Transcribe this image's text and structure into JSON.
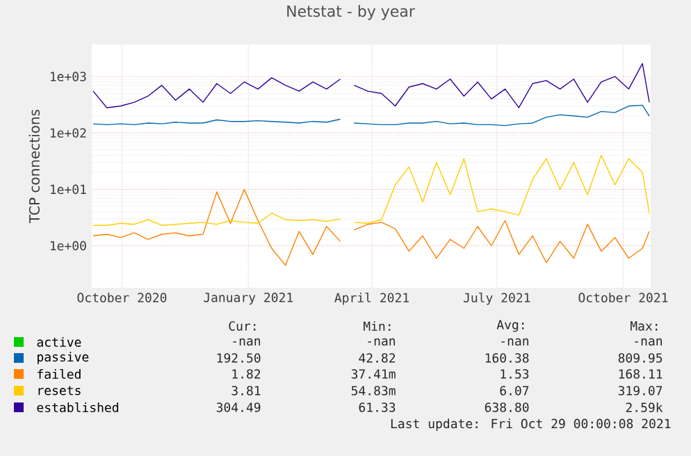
{
  "chart_data": {
    "type": "line",
    "title": "Netstat - by year",
    "ylabel": "TCP connections",
    "x": [
      "2020-09-10",
      "2020-09-20",
      "2020-09-30",
      "2020-10-10",
      "2020-10-20",
      "2020-10-30",
      "2020-11-09",
      "2020-11-19",
      "2020-11-29",
      "2020-12-09",
      "2020-12-19",
      "2020-12-29",
      "2021-01-08",
      "2021-01-18",
      "2021-01-28",
      "2021-02-07",
      "2021-02-17",
      "2021-02-27",
      "2021-03-09",
      "2021-03-14",
      "2021-03-19",
      "2021-03-29",
      "2021-04-08",
      "2021-04-18",
      "2021-04-28",
      "2021-05-08",
      "2021-05-18",
      "2021-05-28",
      "2021-06-07",
      "2021-06-17",
      "2021-06-27",
      "2021-07-07",
      "2021-07-17",
      "2021-07-27",
      "2021-08-06",
      "2021-08-16",
      "2021-08-26",
      "2021-09-05",
      "2021-09-15",
      "2021-09-25",
      "2021-10-05",
      "2021-10-15",
      "2021-10-20"
    ],
    "series": [
      {
        "name": "active",
        "color": "#00cc00",
        "values": [
          null,
          null,
          null,
          null,
          null,
          null,
          null,
          null,
          null,
          null,
          null,
          null,
          null,
          null,
          null,
          null,
          null,
          null,
          null,
          null,
          null,
          null,
          null,
          null,
          null,
          null,
          null,
          null,
          null,
          null,
          null,
          null,
          null,
          null,
          null,
          null,
          null,
          null,
          null,
          null,
          null,
          null,
          null
        ]
      },
      {
        "name": "passive",
        "color": "#0066b3",
        "values": [
          145,
          140,
          145,
          140,
          150,
          145,
          155,
          150,
          150,
          170,
          160,
          160,
          165,
          160,
          155,
          150,
          160,
          155,
          175,
          null,
          150,
          145,
          140,
          140,
          150,
          150,
          160,
          145,
          150,
          140,
          140,
          135,
          145,
          150,
          190,
          210,
          200,
          190,
          240,
          230,
          300,
          310,
          200
        ]
      },
      {
        "name": "failed",
        "color": "#ff8000",
        "values": [
          1.5,
          1.6,
          1.4,
          1.7,
          1.3,
          1.6,
          1.7,
          1.5,
          1.6,
          9,
          2.5,
          10,
          2.8,
          0.9,
          0.45,
          1.8,
          0.7,
          2.2,
          1.2,
          null,
          1.9,
          2.4,
          2.6,
          2.0,
          0.8,
          1.5,
          0.6,
          1.3,
          0.9,
          2.2,
          1.0,
          2.8,
          0.7,
          1.5,
          0.5,
          1.2,
          0.6,
          2.4,
          0.8,
          1.4,
          0.6,
          0.9,
          1.8
        ]
      },
      {
        "name": "resets",
        "color": "#ffcc00",
        "values": [
          2.3,
          2.3,
          2.5,
          2.4,
          2.9,
          2.3,
          2.4,
          2.5,
          2.6,
          2.4,
          2.8,
          2.6,
          2.5,
          3.8,
          2.9,
          2.8,
          2.9,
          2.7,
          3.0,
          null,
          2.6,
          2.5,
          2.9,
          12,
          25,
          6,
          30,
          8,
          35,
          4,
          4.5,
          4,
          3.5,
          15,
          35,
          10,
          30,
          8,
          40,
          12,
          35,
          20,
          3.8
        ]
      },
      {
        "name": "established",
        "color": "#330099",
        "values": [
          550,
          280,
          300,
          350,
          450,
          700,
          380,
          600,
          350,
          750,
          500,
          800,
          600,
          950,
          700,
          550,
          800,
          600,
          900,
          null,
          700,
          550,
          500,
          300,
          650,
          750,
          600,
          900,
          450,
          800,
          400,
          600,
          280,
          750,
          850,
          600,
          900,
          350,
          800,
          1000,
          600,
          1700,
          350
        ]
      }
    ],
    "xlim": [
      "2020-09-09",
      "2021-10-21"
    ],
    "xticks": [
      {
        "value": "2020-10-01",
        "label": "October 2020"
      },
      {
        "value": "2021-01-01",
        "label": "January 2021"
      },
      {
        "value": "2021-04-01",
        "label": "April 2021"
      },
      {
        "value": "2021-07-01",
        "label": "July 2021"
      },
      {
        "value": "2021-10-01",
        "label": "October 2021"
      }
    ],
    "ylim": [
      0.18,
      3700
    ],
    "yticks": [
      {
        "value": 1,
        "label": "1e+00"
      },
      {
        "value": 10,
        "label": "1e+01"
      },
      {
        "value": 100,
        "label": "1e+02"
      },
      {
        "value": 1000,
        "label": "1e+03"
      }
    ],
    "log": true,
    "grid": true,
    "legend": "bottom",
    "line_style": "solid",
    "annotations": [
      "Cur:",
      "Min:",
      "Avg:",
      "Max:",
      "-nan",
      "-nan",
      "-nan",
      "-nan",
      "192.50",
      "42.82",
      "160.38",
      "809.95",
      "1.82",
      "37.41m",
      "1.53",
      "168.11",
      "3.81",
      "54.83m",
      "6.07",
      "319.07",
      "304.49",
      "61.33",
      "638.80",
      "2.59k",
      "Last update: Fri Oct 29 00:00:08 2021"
    ]
  }
}
